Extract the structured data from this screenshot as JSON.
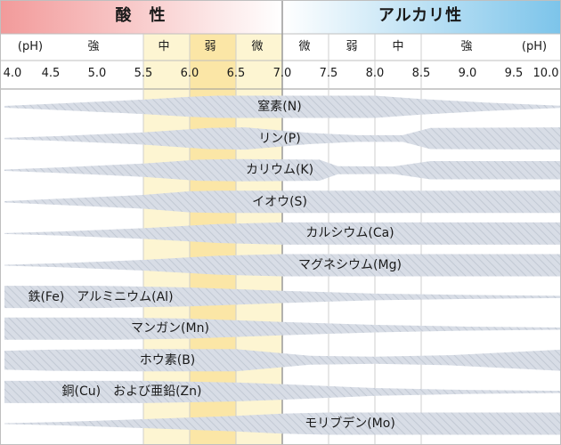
{
  "header": {
    "acid_label": "酸　性",
    "alkaline_label": "アルカリ性",
    "acid_color": "#f29a9a",
    "alkaline_color": "#7cc4ea"
  },
  "strength_labels": {
    "left_unit": "(pH)",
    "right_unit": "(pH)",
    "acid": [
      "強",
      "中",
      "弱",
      "微"
    ],
    "alkaline": [
      "微",
      "弱",
      "中",
      "強"
    ]
  },
  "ph_scale": {
    "min": 4.0,
    "max": 10.0,
    "ticks": [
      "4.0",
      "4.5",
      "5.0",
      "5.5",
      "6.0",
      "6.5",
      "7.0",
      "7.5",
      "8.0",
      "8.5",
      "9.0",
      "9.5",
      "10.0"
    ]
  },
  "highlight_colors": {
    "light_yellow": "#fdf5d2",
    "deep_yellow": "#fbe6a6"
  },
  "band_color": "#d8dde6",
  "nutrients": [
    {
      "label": "窒素(N)",
      "availability": [
        [
          4.0,
          0.08
        ],
        [
          4.6,
          0.3
        ],
        [
          5.5,
          0.65
        ],
        [
          6.0,
          0.9
        ],
        [
          6.3,
          1
        ],
        [
          8.0,
          1
        ],
        [
          8.5,
          0.7
        ],
        [
          9.2,
          0.38
        ],
        [
          10.0,
          0.1
        ]
      ]
    },
    {
      "label": "リン(P)",
      "availability": [
        [
          4.0,
          0.06
        ],
        [
          4.6,
          0.22
        ],
        [
          5.5,
          0.55
        ],
        [
          6.2,
          0.95
        ],
        [
          6.6,
          1
        ],
        [
          7.3,
          0.5
        ],
        [
          7.8,
          0.3
        ],
        [
          8.3,
          0.3
        ],
        [
          8.6,
          0.95
        ],
        [
          10.0,
          1
        ]
      ]
    },
    {
      "label": "カリウム(K)",
      "availability": [
        [
          4.0,
          0.06
        ],
        [
          4.6,
          0.25
        ],
        [
          5.5,
          0.6
        ],
        [
          6.1,
          0.95
        ],
        [
          6.5,
          1
        ],
        [
          7.4,
          0.95
        ],
        [
          7.6,
          0.36
        ],
        [
          8.2,
          0.34
        ],
        [
          8.6,
          0.82
        ],
        [
          10.0,
          0.82
        ]
      ]
    },
    {
      "label": "イオウ(S)",
      "availability": [
        [
          4.0,
          0.06
        ],
        [
          4.6,
          0.28
        ],
        [
          5.5,
          0.62
        ],
        [
          6.0,
          0.95
        ],
        [
          6.3,
          1
        ],
        [
          10.0,
          1
        ]
      ]
    },
    {
      "label": "カルシウム(Ca)",
      "availability": [
        [
          4.0,
          0.04
        ],
        [
          4.6,
          0.18
        ],
        [
          5.5,
          0.48
        ],
        [
          6.3,
          0.85
        ],
        [
          7.0,
          1
        ],
        [
          10.0,
          1
        ]
      ]
    },
    {
      "label": "マグネシウム(Mg)",
      "availability": [
        [
          4.0,
          0.04
        ],
        [
          4.6,
          0.18
        ],
        [
          5.5,
          0.48
        ],
        [
          6.3,
          0.85
        ],
        [
          7.0,
          1
        ],
        [
          10.0,
          1
        ]
      ]
    },
    {
      "label": "鉄(Fe)　アルミニウム(Al)",
      "availability": [
        [
          4.0,
          1
        ],
        [
          5.0,
          1
        ],
        [
          6.0,
          0.85
        ],
        [
          7.0,
          0.55
        ],
        [
          8.0,
          0.3
        ],
        [
          9.0,
          0.18
        ],
        [
          10.0,
          0.1
        ]
      ]
    },
    {
      "label": "マンガン(Mn)",
      "availability": [
        [
          4.0,
          1
        ],
        [
          5.2,
          1
        ],
        [
          6.0,
          0.9
        ],
        [
          7.0,
          0.6
        ],
        [
          8.0,
          0.34
        ],
        [
          9.0,
          0.18
        ],
        [
          10.0,
          0.1
        ]
      ]
    },
    {
      "label": "ホウ素(B)",
      "availability": [
        [
          4.0,
          0.85
        ],
        [
          4.5,
          0.95
        ],
        [
          5.5,
          1
        ],
        [
          6.5,
          1
        ],
        [
          7.3,
          0.4
        ],
        [
          8.0,
          0.32
        ],
        [
          8.8,
          0.45
        ],
        [
          10.0,
          0.95
        ]
      ]
    },
    {
      "label": "銅(Cu)　および亜鉛(Zn)",
      "availability": [
        [
          4.0,
          1
        ],
        [
          5.5,
          1
        ],
        [
          6.5,
          0.85
        ],
        [
          7.0,
          0.7
        ],
        [
          8.0,
          0.35
        ],
        [
          9.0,
          0.18
        ],
        [
          10.0,
          0.1
        ]
      ]
    },
    {
      "label": "モリブデン(Mo)",
      "availability": [
        [
          4.0,
          0.04
        ],
        [
          4.6,
          0.15
        ],
        [
          5.5,
          0.4
        ],
        [
          6.5,
          0.7
        ],
        [
          7.0,
          0.9
        ],
        [
          7.5,
          1
        ],
        [
          10.0,
          1
        ]
      ]
    }
  ]
}
